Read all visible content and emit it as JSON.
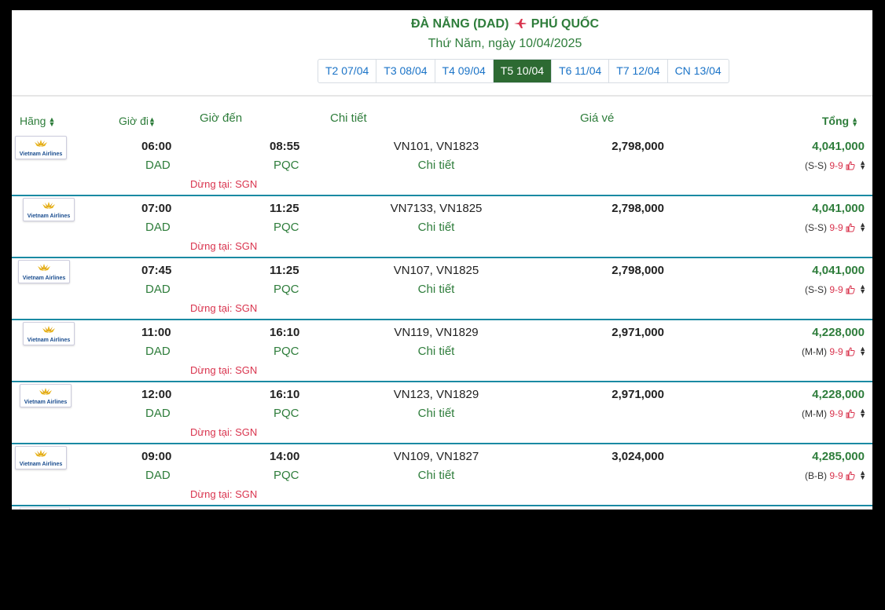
{
  "header": {
    "origin": "ĐÀ NẴNG (DAD)",
    "destination": "PHÚ QUỐC",
    "date_text": "Thứ Năm, ngày 10/04/2025",
    "accent": "#2e7d3b",
    "plane_icon": "plane-icon"
  },
  "day_tabs": [
    {
      "label": "T2 07/04",
      "active": false
    },
    {
      "label": "T3 08/04",
      "active": false
    },
    {
      "label": "T4 09/04",
      "active": false
    },
    {
      "label": "T5 10/04",
      "active": true
    },
    {
      "label": "T6 11/04",
      "active": false
    },
    {
      "label": "T7 12/04",
      "active": false
    },
    {
      "label": "CN 13/04",
      "active": false
    }
  ],
  "columns": {
    "airline": "Hãng",
    "departure": "Giờ đi",
    "arrival": "Giờ đến",
    "detail": "Chi tiết",
    "price": "Giá vé",
    "total": "Tổng"
  },
  "flights": [
    {
      "airline": "Vietnam Airlines",
      "dep_time": "06:00",
      "dep_code": "DAD",
      "arr_time": "08:55",
      "arr_code": "PQC",
      "stop": "Dừng tại: SGN",
      "flight_nos": "VN101, VN1823",
      "detail": "Chi tiết",
      "price": "2,798,000",
      "total": "4,041,000",
      "fare_class": "(S-S)",
      "promo": "9-9"
    },
    {
      "airline": "Vietnam Airlines",
      "dep_time": "07:00",
      "dep_code": "DAD",
      "arr_time": "11:25",
      "arr_code": "PQC",
      "stop": "Dừng tại: SGN",
      "flight_nos": "VN7133, VN1825",
      "detail": "Chi tiết",
      "price": "2,798,000",
      "total": "4,041,000",
      "fare_class": "(S-S)",
      "promo": "9-9"
    },
    {
      "airline": "Vietnam Airlines",
      "dep_time": "07:45",
      "dep_code": "DAD",
      "arr_time": "11:25",
      "arr_code": "PQC",
      "stop": "Dừng tại: SGN",
      "flight_nos": "VN107, VN1825",
      "detail": "Chi tiết",
      "price": "2,798,000",
      "total": "4,041,000",
      "fare_class": "(S-S)",
      "promo": "9-9"
    },
    {
      "airline": "Vietnam Airlines",
      "dep_time": "11:00",
      "dep_code": "DAD",
      "arr_time": "16:10",
      "arr_code": "PQC",
      "stop": "Dừng tại: SGN",
      "flight_nos": "VN119, VN1829",
      "detail": "Chi tiết",
      "price": "2,971,000",
      "total": "4,228,000",
      "fare_class": "(M-M)",
      "promo": "9-9"
    },
    {
      "airline": "Vietnam Airlines",
      "dep_time": "12:00",
      "dep_code": "DAD",
      "arr_time": "16:10",
      "arr_code": "PQC",
      "stop": "Dừng tại: SGN",
      "flight_nos": "VN123, VN1829",
      "detail": "Chi tiết",
      "price": "2,971,000",
      "total": "4,228,000",
      "fare_class": "(M-M)",
      "promo": "9-9"
    },
    {
      "airline": "Vietnam Airlines",
      "dep_time": "09:00",
      "dep_code": "DAD",
      "arr_time": "14:00",
      "arr_code": "PQC",
      "stop": "Dừng tại: SGN",
      "flight_nos": "VN109, VN1827",
      "detail": "Chi tiết",
      "price": "3,024,000",
      "total": "4,285,000",
      "fare_class": "(B-B)",
      "promo": "9-9"
    }
  ]
}
